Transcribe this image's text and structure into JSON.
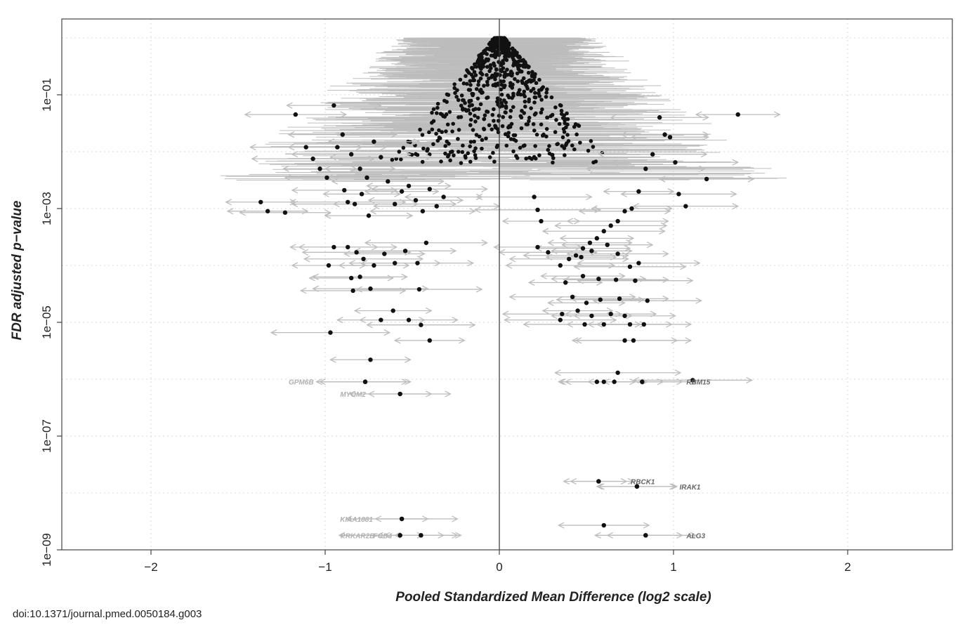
{
  "caption": "doi:10.1371/journal.pmed.0050184.g003",
  "chart_data": {
    "type": "scatter",
    "xlabel": "Pooled Standardized Mean Difference (log2 scale)",
    "ylabel": "FDR adjusted p−value",
    "x_scale": "linear",
    "y_scale": "log10",
    "xlim": [
      -2.5,
      2.6
    ],
    "ylim": [
      1e-09,
      1
    ],
    "x_ticks": [
      -2,
      -1,
      0,
      1,
      2
    ],
    "x_tick_labels": [
      "−2",
      "−1",
      "0",
      "1",
      "2"
    ],
    "y_ticks": [
      1e-09,
      1e-07,
      1e-05,
      0.001,
      0.1
    ],
    "y_tick_labels": [
      "1e−09",
      "1e−07",
      "1e−05",
      "1e−03",
      "1e−01"
    ],
    "grid": true,
    "reference_line_x": 0,
    "colors": {
      "point": "#111111",
      "interval": "#bdbdbd",
      "label_dark": "#666666",
      "label_light": "#b0b0b0"
    },
    "labeled_genes": [
      {
        "gene": "GPM6B",
        "x": -0.77,
        "p": 9e-07,
        "ci": [
          -1.05,
          -0.53
        ]
      },
      {
        "gene": "MYOM2",
        "x": -0.57,
        "p": 5.5e-07,
        "ci": [
          -0.75,
          -0.39
        ]
      },
      {
        "gene": "RBM15",
        "x": 0.82,
        "p": 9e-07,
        "ci": [
          0.6,
          1.05
        ]
      },
      {
        "gene": "RBCK1",
        "x": 0.57,
        "p": 1.6e-08,
        "ci": [
          0.41,
          0.73
        ]
      },
      {
        "gene": "IRAK1",
        "x": 0.79,
        "p": 1.3e-08,
        "ci": [
          0.57,
          1.01
        ]
      },
      {
        "gene": "KIAA1881",
        "x": -0.56,
        "p": 3.5e-09,
        "ci": [
          -0.71,
          -0.41
        ]
      },
      {
        "gene": "PRKAR2B",
        "x": -0.57,
        "p": 1.8e-09,
        "ci": [
          -0.7,
          -0.44
        ]
      },
      {
        "gene": "FGD4",
        "x": -0.45,
        "p": 1.8e-09,
        "ci": [
          -0.6,
          -0.32
        ]
      },
      {
        "gene": "ALG3",
        "x": 0.84,
        "p": 1.8e-09,
        "ci": [
          0.62,
          1.05
        ]
      }
    ],
    "series": [
      {
        "name": "",
        "points": [
          [
            -1.37,
            0.0013
          ],
          [
            -1.33,
            0.0009
          ],
          [
            -1.23,
            0.00085
          ],
          [
            -1.17,
            0.045
          ],
          [
            -1.11,
            0.012
          ],
          [
            -1.07,
            0.0075
          ],
          [
            -1.03,
            0.005
          ],
          [
            -0.99,
            0.0035
          ],
          [
            -0.95,
            0.065
          ],
          [
            -0.89,
            0.0021
          ],
          [
            -0.87,
            0.0013
          ],
          [
            -0.83,
            0.0012
          ],
          [
            -0.79,
            0.0018
          ],
          [
            -0.75,
            0.00075
          ],
          [
            -0.93,
            0.012
          ],
          [
            -0.9,
            0.02
          ],
          [
            -0.85,
            0.009
          ],
          [
            -0.8,
            0.005
          ],
          [
            -0.76,
            0.0035
          ],
          [
            -0.72,
            0.015
          ],
          [
            -0.68,
            0.008
          ],
          [
            -0.64,
            0.003
          ],
          [
            -0.6,
            0.0012
          ],
          [
            -0.56,
            0.002
          ],
          [
            -0.52,
            0.0025
          ],
          [
            -0.48,
            0.0014
          ],
          [
            -0.44,
            0.0009
          ],
          [
            -0.4,
            0.0022
          ],
          [
            -0.36,
            0.0011
          ],
          [
            -0.32,
            0.0016
          ],
          [
            -0.95,
            0.00021
          ],
          [
            -0.87,
            0.00021
          ],
          [
            -0.82,
            0.00017
          ],
          [
            -0.78,
            0.00013
          ],
          [
            -0.72,
            0.0001
          ],
          [
            -0.66,
            0.00016
          ],
          [
            -0.6,
            0.00011
          ],
          [
            -0.54,
            0.00018
          ],
          [
            -0.47,
            0.00011
          ],
          [
            -0.42,
            0.00025
          ],
          [
            -0.98,
            0.0001
          ],
          [
            -0.85,
            6e-05
          ],
          [
            -0.8,
            6.3e-05
          ],
          [
            -0.84,
            3.6e-05
          ],
          [
            -0.74,
            3.9e-05
          ],
          [
            -0.46,
            3.8e-05
          ],
          [
            -0.61,
            1.6e-05
          ],
          [
            -0.68,
            1.1e-05
          ],
          [
            -0.52,
            1.1e-05
          ],
          [
            -0.45,
            9e-06
          ],
          [
            -0.97,
            6.6e-06
          ],
          [
            -0.4,
            4.8e-06
          ],
          [
            -0.74,
            2.2e-06
          ],
          [
            -0.77,
            9e-07
          ],
          [
            -0.57,
            5.5e-07
          ],
          [
            -0.56,
            3.5e-09
          ],
          [
            -0.57,
            1.8e-09
          ],
          [
            -0.45,
            1.8e-09
          ],
          [
            1.37,
            0.045
          ],
          [
            1.19,
            0.0033
          ],
          [
            1.07,
            0.0011
          ],
          [
            1.03,
            0.0018
          ],
          [
            1.01,
            0.0065
          ],
          [
            0.98,
            0.018
          ],
          [
            0.95,
            0.02
          ],
          [
            0.92,
            0.04
          ],
          [
            0.88,
            0.009
          ],
          [
            0.84,
            0.005
          ],
          [
            0.8,
            0.002
          ],
          [
            0.76,
            0.001
          ],
          [
            0.72,
            0.0009
          ],
          [
            0.68,
            0.0006
          ],
          [
            0.64,
            0.0005
          ],
          [
            0.6,
            0.0004
          ],
          [
            0.56,
            0.0003
          ],
          [
            0.52,
            0.00025
          ],
          [
            0.48,
            0.0002
          ],
          [
            0.44,
            0.00015
          ],
          [
            0.2,
            0.0016
          ],
          [
            0.22,
            0.00095
          ],
          [
            0.24,
            0.0006
          ],
          [
            0.22,
            0.00021
          ],
          [
            0.28,
            0.00017
          ],
          [
            0.35,
            0.0001
          ],
          [
            0.4,
            0.00013
          ],
          [
            0.47,
            0.00014
          ],
          [
            0.53,
            0.00018
          ],
          [
            0.62,
            0.00023
          ],
          [
            0.68,
            0.00016
          ],
          [
            0.75,
            9.5e-05
          ],
          [
            0.8,
            0.00011
          ],
          [
            0.38,
            5e-05
          ],
          [
            0.48,
            6.5e-05
          ],
          [
            0.57,
            5.8e-05
          ],
          [
            0.67,
            5.6e-05
          ],
          [
            0.78,
            5.4e-05
          ],
          [
            0.42,
            2.8e-05
          ],
          [
            0.5,
            2.2e-05
          ],
          [
            0.58,
            2.5e-05
          ],
          [
            0.69,
            2.6e-05
          ],
          [
            0.85,
            2.4e-05
          ],
          [
            0.36,
            1.4e-05
          ],
          [
            0.45,
            1.6e-05
          ],
          [
            0.53,
            1.3e-05
          ],
          [
            0.64,
            1.4e-05
          ],
          [
            0.72,
            1.3e-05
          ],
          [
            0.35,
            1.1e-05
          ],
          [
            0.49,
            9.2e-06
          ],
          [
            0.6,
            9.2e-06
          ],
          [
            0.75,
            9.2e-06
          ],
          [
            0.83,
            9.2e-06
          ],
          [
            0.72,
            4.8e-06
          ],
          [
            0.77,
            4.8e-06
          ],
          [
            0.68,
            1.3e-06
          ],
          [
            0.56,
            9e-07
          ],
          [
            0.6,
            9e-07
          ],
          [
            0.66,
            9e-07
          ],
          [
            0.82,
            9e-07
          ],
          [
            1.11,
            9.6e-07
          ],
          [
            0.57,
            1.6e-08
          ],
          [
            0.79,
            1.3e-08
          ],
          [
            0.6,
            2.7e-09
          ],
          [
            0.84,
            1.8e-09
          ]
        ]
      }
    ]
  }
}
